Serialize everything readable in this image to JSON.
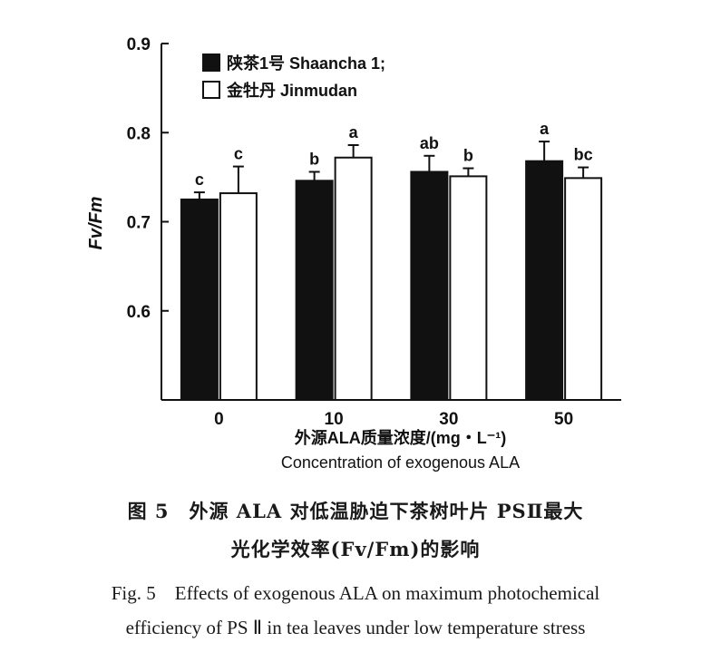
{
  "chart_data": {
    "type": "bar",
    "title": "",
    "ylabel": "Fv/Fm",
    "xlabel_zh": "外源ALA质量浓度/(mg・L⁻¹)",
    "xlabel_en": "Concentration of exogenous ALA",
    "categories": [
      "0",
      "10",
      "30",
      "50"
    ],
    "ylim": [
      0.5,
      0.9
    ],
    "yticks": [
      "0.6",
      "0.7",
      "0.8",
      "0.9"
    ],
    "grid": false,
    "legend_position": "top-left",
    "series": [
      {
        "name": "陕茶1号 Shaancha 1;",
        "color": "#111111",
        "values": [
          0.725,
          0.746,
          0.756,
          0.768
        ],
        "errors": [
          0.008,
          0.01,
          0.018,
          0.022
        ],
        "letters": [
          "c",
          "b",
          "ab",
          "a"
        ]
      },
      {
        "name": "金牡丹 Jinmudan",
        "color": "#ffffff",
        "values": [
          0.732,
          0.772,
          0.751,
          0.749
        ],
        "errors": [
          0.03,
          0.014,
          0.009,
          0.012
        ],
        "letters": [
          "c",
          "a",
          "b",
          "bc"
        ]
      }
    ]
  },
  "caption": {
    "zh_line1": "图 5　外源 ALA 对低温胁迫下茶树叶片 PSⅡ最大",
    "zh_line2": "光化学效率(Fv/Fm)的影响",
    "en_line1": "Fig. 5　Effects of exogenous ALA on maximum photochemical",
    "en_line2": "efficiency of PS Ⅱ in tea leaves under low temperature stress"
  }
}
